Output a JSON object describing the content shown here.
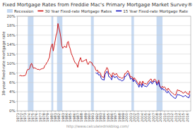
{
  "chart_data": {
    "type": "line",
    "title": "Fixed Mortgage Rates from Freddie Mac's Primary Mortgage Market Survey®",
    "y_label": "30-year fixed-rate mortgage rate",
    "annotations": [
      "http://www.calculatedriskblog.com/"
    ],
    "xlim": [
      1971,
      2017
    ],
    "xticks": [
      1971,
      1972,
      1973,
      1974,
      1975,
      1976,
      1977,
      1978,
      1979,
      1980,
      1981,
      1982,
      1983,
      1984,
      1985,
      1986,
      1987,
      1988,
      1989,
      1990,
      1991,
      1992,
      1993,
      1994,
      1995,
      1996,
      1997,
      1998,
      1999,
      2000,
      2001,
      2002,
      2003,
      2004,
      2005,
      2006,
      2007,
      2008,
      2009,
      2010,
      2011,
      2012,
      2013,
      2014,
      2015,
      2016
    ],
    "ylim": [
      0,
      20
    ],
    "yticks": [
      {
        "value": 0,
        "label": "0%"
      },
      {
        "value": 2,
        "label": "2%"
      },
      {
        "value": 4,
        "label": "4%"
      },
      {
        "value": 6,
        "label": "6%"
      },
      {
        "value": 8,
        "label": "8%"
      },
      {
        "value": 10,
        "label": "10%"
      },
      {
        "value": 12,
        "label": "12%"
      },
      {
        "value": 14,
        "label": "14%"
      },
      {
        "value": 16,
        "label": "16%"
      },
      {
        "value": 18,
        "label": "18%"
      },
      {
        "value": 20,
        "label": "20%"
      }
    ],
    "grid": true,
    "legend": "top",
    "recession_bands": {
      "name": "Recession",
      "color": "#c6d9f1",
      "ranges": [
        [
          1973.75,
          1975.25
        ],
        [
          1980.0,
          1980.5
        ],
        [
          1981.5,
          1982.92
        ],
        [
          1990.5,
          1991.25
        ],
        [
          2001.25,
          2001.92
        ],
        [
          2007.92,
          2009.5
        ]
      ]
    },
    "series": [
      {
        "name": "30 Year Fixed-rate Mortgage Rates",
        "color": "#cc0000",
        "x": [
          1971.5,
          1971.75,
          1972.0,
          1972.25,
          1972.5,
          1972.75,
          1973.0,
          1973.25,
          1973.5,
          1973.75,
          1974.0,
          1974.25,
          1974.5,
          1974.75,
          1975.0,
          1975.25,
          1975.5,
          1975.75,
          1976.0,
          1976.25,
          1976.5,
          1976.75,
          1977.0,
          1977.25,
          1977.5,
          1977.75,
          1978.0,
          1978.25,
          1978.5,
          1978.75,
          1979.0,
          1979.25,
          1979.5,
          1979.75,
          1980.0,
          1980.25,
          1980.5,
          1980.75,
          1981.0,
          1981.25,
          1981.5,
          1981.75,
          1982.0,
          1982.25,
          1982.5,
          1982.75,
          1983.0,
          1983.25,
          1983.5,
          1983.75,
          1984.0,
          1984.25,
          1984.5,
          1984.75,
          1985.0,
          1985.25,
          1985.5,
          1985.75,
          1986.0,
          1986.25,
          1986.5,
          1986.75,
          1987.0,
          1987.25,
          1987.5,
          1987.75,
          1988.0,
          1988.25,
          1988.5,
          1988.75,
          1989.0,
          1989.25,
          1989.5,
          1989.75,
          1990.0,
          1990.25,
          1990.5,
          1990.75,
          1991.0,
          1991.25,
          1991.5,
          1991.75,
          1992.0,
          1992.25,
          1992.5,
          1992.75,
          1993.0,
          1993.25,
          1993.5,
          1993.75,
          1994.0,
          1994.25,
          1994.5,
          1994.75,
          1995.0,
          1995.25,
          1995.5,
          1995.75,
          1996.0,
          1996.25,
          1996.5,
          1996.75,
          1997.0,
          1997.25,
          1997.5,
          1997.75,
          1998.0,
          1998.25,
          1998.5,
          1998.75,
          1999.0,
          1999.25,
          1999.5,
          1999.75,
          2000.0,
          2000.25,
          2000.5,
          2000.75,
          2001.0,
          2001.25,
          2001.5,
          2001.75,
          2002.0,
          2002.25,
          2002.5,
          2002.75,
          2003.0,
          2003.25,
          2003.5,
          2003.75,
          2004.0,
          2004.25,
          2004.5,
          2004.75,
          2005.0,
          2005.25,
          2005.5,
          2005.75,
          2006.0,
          2006.25,
          2006.5,
          2006.75,
          2007.0,
          2007.25,
          2007.5,
          2007.75,
          2008.0,
          2008.25,
          2008.5,
          2008.75,
          2009.0,
          2009.25,
          2009.5,
          2009.75,
          2010.0,
          2010.25,
          2010.5,
          2010.75,
          2011.0,
          2011.25,
          2011.5,
          2011.75,
          2012.0,
          2012.25,
          2012.5,
          2012.75,
          2013.0,
          2013.25,
          2013.5,
          2013.75,
          2014.0,
          2014.25,
          2014.5,
          2014.75,
          2015.0,
          2015.25,
          2015.5,
          2015.75,
          2016.0,
          2016.25,
          2016.5,
          2016.75
        ],
        "values": [
          7.33,
          7.53,
          7.38,
          7.41,
          7.37,
          7.44,
          7.44,
          7.73,
          8.48,
          8.8,
          8.71,
          9.0,
          9.71,
          10.05,
          9.5,
          8.98,
          9.1,
          9.01,
          8.92,
          8.75,
          8.8,
          8.7,
          8.69,
          8.85,
          8.88,
          8.98,
          9.02,
          9.57,
          9.73,
          10.18,
          10.38,
          10.92,
          11.35,
          12.9,
          13.76,
          14.17,
          12.66,
          13.77,
          14.8,
          15.95,
          16.57,
          18.45,
          17.48,
          16.72,
          15.56,
          13.82,
          13.24,
          13.42,
          13.71,
          13.45,
          13.38,
          14.47,
          14.67,
          13.64,
          13.12,
          12.22,
          11.74,
          11.26,
          10.71,
          10.21,
          10.06,
          9.77,
          9.2,
          10.18,
          10.77,
          11.26,
          10.41,
          10.46,
          10.47,
          10.67,
          10.67,
          10.93,
          10.13,
          9.79,
          10.2,
          10.45,
          10.18,
          10.18,
          9.63,
          9.51,
          9.29,
          8.69,
          8.43,
          8.62,
          8.1,
          8.21,
          7.96,
          7.41,
          7.16,
          7.17,
          7.05,
          8.36,
          8.64,
          9.17,
          8.83,
          7.88,
          7.8,
          7.54,
          7.09,
          8.0,
          8.01,
          7.6,
          7.65,
          7.93,
          7.6,
          7.22,
          7.1,
          7.14,
          6.94,
          6.87,
          6.99,
          7.15,
          7.87,
          7.91,
          8.15,
          8.52,
          8.19,
          7.75,
          7.07,
          7.24,
          7.13,
          6.54,
          7.0,
          6.73,
          6.49,
          6.09,
          5.92,
          5.52,
          6.22,
          5.95,
          5.47,
          6.29,
          5.87,
          5.72,
          5.79,
          5.63,
          5.77,
          6.26,
          6.32,
          6.67,
          6.73,
          6.14,
          6.22,
          6.66,
          6.7,
          6.47,
          5.76,
          6.09,
          6.48,
          5.29,
          5.04,
          4.91,
          5.19,
          4.88,
          5.09,
          4.91,
          4.45,
          4.3,
          4.81,
          4.51,
          4.27,
          3.99,
          3.87,
          3.67,
          3.55,
          3.35,
          3.34,
          3.98,
          4.51,
          4.26,
          4.32,
          4.14,
          4.13,
          3.86,
          3.73,
          3.84,
          4.09,
          3.94,
          3.65,
          3.59,
          3.46,
          4.2
        ]
      },
      {
        "name": "15 Year Fixed-rate Mortgage Rate",
        "color": "#0000bb",
        "x": [
          1991.75,
          1992.0,
          1992.25,
          1992.5,
          1992.75,
          1993.0,
          1993.25,
          1993.5,
          1993.75,
          1994.0,
          1994.25,
          1994.5,
          1994.75,
          1995.0,
          1995.25,
          1995.5,
          1995.75,
          1996.0,
          1996.25,
          1996.5,
          1996.75,
          1997.0,
          1997.25,
          1997.5,
          1997.75,
          1998.0,
          1998.25,
          1998.5,
          1998.75,
          1999.0,
          1999.25,
          1999.5,
          1999.75,
          2000.0,
          2000.25,
          2000.5,
          2000.75,
          2001.0,
          2001.25,
          2001.5,
          2001.75,
          2002.0,
          2002.25,
          2002.5,
          2002.75,
          2003.0,
          2003.25,
          2003.5,
          2003.75,
          2004.0,
          2004.25,
          2004.5,
          2004.75,
          2005.0,
          2005.25,
          2005.5,
          2005.75,
          2006.0,
          2006.25,
          2006.5,
          2006.75,
          2007.0,
          2007.25,
          2007.5,
          2007.75,
          2008.0,
          2008.25,
          2008.5,
          2008.75,
          2009.0,
          2009.25,
          2009.5,
          2009.75,
          2010.0,
          2010.25,
          2010.5,
          2010.75,
          2011.0,
          2011.25,
          2011.5,
          2011.75,
          2012.0,
          2012.25,
          2012.5,
          2012.75,
          2013.0,
          2013.25,
          2013.5,
          2013.75,
          2014.0,
          2014.25,
          2014.5,
          2014.75,
          2015.0,
          2015.25,
          2015.5,
          2015.75,
          2016.0,
          2016.25,
          2016.5,
          2016.75
        ],
        "values": [
          8.07,
          7.88,
          8.08,
          7.58,
          7.67,
          7.41,
          6.84,
          6.6,
          6.62,
          6.49,
          7.72,
          7.97,
          8.38,
          8.08,
          7.22,
          7.15,
          6.93,
          6.55,
          7.38,
          7.39,
          7.03,
          7.07,
          7.33,
          7.04,
          6.71,
          6.57,
          6.62,
          6.44,
          6.33,
          6.44,
          6.57,
          7.27,
          7.28,
          7.56,
          7.95,
          7.73,
          7.3,
          6.68,
          6.86,
          6.74,
          6.15,
          6.6,
          6.32,
          6.05,
          5.68,
          5.5,
          4.99,
          5.65,
          5.4,
          4.95,
          5.73,
          5.34,
          5.21,
          5.22,
          5.09,
          5.24,
          5.69,
          5.76,
          6.14,
          6.17,
          5.67,
          5.95,
          6.3,
          6.28,
          6.07,
          5.41,
          5.67,
          6.08,
          5.14,
          4.92,
          4.53,
          4.78,
          4.41,
          4.5,
          4.32,
          3.95,
          3.78,
          4.17,
          3.84,
          3.63,
          3.3,
          3.19,
          2.96,
          2.83,
          2.66,
          2.64,
          3.1,
          3.54,
          3.35,
          3.38,
          3.26,
          3.23,
          3.06,
          2.98,
          3.07,
          3.27,
          3.17,
          2.92,
          2.85,
          2.75,
          3.43
        ]
      }
    ]
  }
}
